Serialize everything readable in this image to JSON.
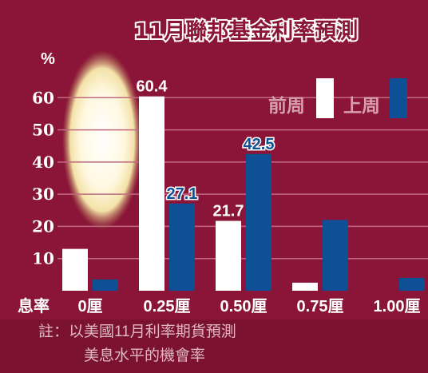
{
  "chart_data": {
    "type": "bar",
    "title": "11月聯邦基金利率預測",
    "ylabel": "%",
    "ylim": [
      0,
      70
    ],
    "yticks": [
      10,
      20,
      30,
      40,
      50,
      60
    ],
    "x_axis_label": "息率",
    "categories": [
      "0厘",
      "0.25厘",
      "0.50厘",
      "0.75厘",
      "1.00厘"
    ],
    "series": [
      {
        "name": "前周",
        "color": "#ffffff",
        "values": [
          13,
          60.4,
          21.7,
          2.5,
          0
        ]
      },
      {
        "name": "上周",
        "color": "#0d5096",
        "values": [
          3.5,
          27.1,
          42.5,
          22,
          4
        ]
      }
    ],
    "data_labels": [
      {
        "series": 0,
        "category": 1,
        "text": "60.4"
      },
      {
        "series": 1,
        "category": 1,
        "text": "27.1"
      },
      {
        "series": 0,
        "category": 2,
        "text": "21.7"
      },
      {
        "series": 1,
        "category": 2,
        "text": "42.5"
      }
    ],
    "grid": true,
    "legend_position": "top-right"
  },
  "note": {
    "line1": "註：以美國11月利率期貨預測",
    "line2": "美息水平的機會率"
  },
  "colors": {
    "background": "#8b1538",
    "footer": "#7a1230",
    "gridline": "#c06a80",
    "label_white": "#ffffff",
    "label_blue": "#0d5096"
  }
}
